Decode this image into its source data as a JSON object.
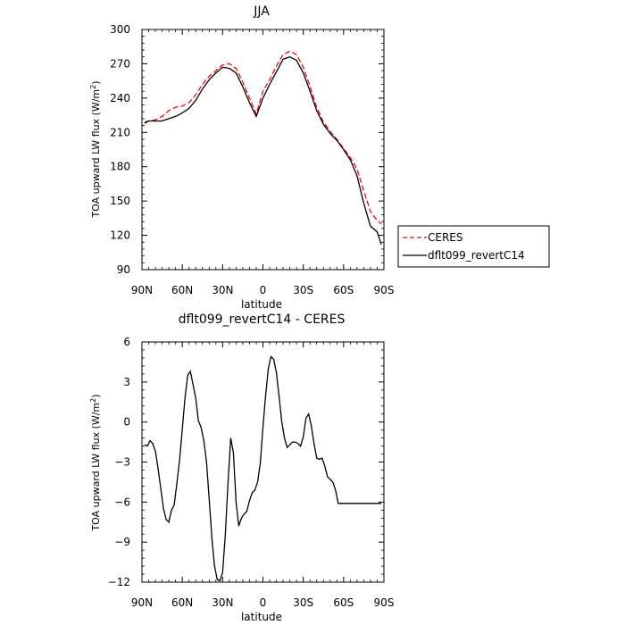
{
  "chart_data": [
    {
      "type": "line",
      "title": "JJA",
      "xlabel": "latitude",
      "ylabel_main": "TOA upward LW flux (W/m",
      "ylabel_sup": "2",
      "ylabel_close": ")",
      "xlim": [
        90,
        -90
      ],
      "ylim": [
        90,
        300
      ],
      "x_ticks": [
        90,
        60,
        30,
        0,
        -30,
        -60,
        -90
      ],
      "x_tick_labels": [
        "90N",
        "60N",
        "30N",
        "0",
        "30S",
        "60S",
        "90S"
      ],
      "y_ticks": [
        90,
        120,
        150,
        180,
        210,
        240,
        270,
        300
      ],
      "y_tick_labels": [
        "90",
        "120",
        "150",
        "180",
        "210",
        "240",
        "270",
        "300"
      ],
      "grid": false,
      "legend_position": "right",
      "x": [
        88,
        85,
        80,
        75,
        70,
        65,
        60,
        55,
        50,
        45,
        40,
        35,
        30,
        25,
        20,
        15,
        10,
        5,
        0,
        -5,
        -10,
        -15,
        -20,
        -25,
        -30,
        -35,
        -40,
        -45,
        -50,
        -55,
        -60,
        -65,
        -70,
        -75,
        -80,
        -85,
        -88
      ],
      "series": [
        {
          "name": "CERES",
          "color": "#ff0000",
          "dash": true,
          "values": [
            219,
            220,
            221,
            224,
            229,
            232,
            233,
            236,
            243,
            252,
            259,
            264,
            269,
            270,
            266,
            254,
            240,
            226,
            246,
            256,
            268,
            278,
            281,
            278,
            267,
            250,
            232,
            219,
            211,
            204,
            196,
            188,
            178,
            159,
            141,
            133,
            130
          ]
        },
        {
          "name": "dflt099_revertC14",
          "color": "#000000",
          "dash": false,
          "values": [
            218,
            220,
            220,
            220,
            222,
            224,
            227,
            231,
            238,
            248,
            256,
            262,
            267,
            266,
            262,
            250,
            236,
            224,
            240,
            252,
            263,
            274,
            276,
            273,
            262,
            246,
            229,
            217,
            209,
            203,
            195,
            186,
            172,
            148,
            128,
            123,
            112
          ]
        }
      ]
    },
    {
      "type": "line",
      "title": "dflt099_revertC14 - CERES",
      "xlabel": "latitude",
      "ylabel_main": "TOA upward LW flux (W/m",
      "ylabel_sup": "2",
      "ylabel_close": ")",
      "xlim": [
        90,
        -90
      ],
      "ylim": [
        -12,
        6
      ],
      "x_ticks": [
        90,
        60,
        30,
        0,
        -30,
        -60,
        -90
      ],
      "x_tick_labels": [
        "90N",
        "60N",
        "30N",
        "0",
        "30S",
        "60S",
        "90S"
      ],
      "y_ticks": [
        -12,
        -9,
        -6,
        -3,
        0,
        3,
        6
      ],
      "y_tick_labels": [
        "−12",
        "−9",
        "−6",
        "−3",
        "0",
        "3",
        "6"
      ],
      "grid": false,
      "x": [
        88,
        86,
        84,
        82,
        80,
        78,
        76,
        74,
        72,
        70,
        68,
        66,
        64,
        62,
        60,
        58,
        56,
        54,
        52,
        50,
        48,
        46,
        44,
        42,
        40,
        38,
        36,
        34,
        32,
        30,
        28,
        26,
        24,
        22,
        20,
        18,
        16,
        14,
        12,
        10,
        8,
        6,
        4,
        2,
        0,
        -2,
        -4,
        -6,
        -8,
        -10,
        -12,
        -14,
        -16,
        -18,
        -20,
        -22,
        -24,
        -26,
        -28,
        -30,
        -32,
        -34,
        -36,
        -38,
        -40,
        -42,
        -44,
        -46,
        -48,
        -50,
        -52,
        -54,
        -56,
        -58,
        -60,
        -62,
        -64,
        -66,
        -68,
        -70,
        -72,
        -74,
        -76,
        -78,
        -80,
        -82,
        -84,
        -86,
        -88
      ],
      "series": [
        {
          "name": "",
          "color": "#000000",
          "dash": false,
          "values": [
            -1.7,
            -1.8,
            -1.4,
            -1.6,
            -2.2,
            -3.5,
            -5.0,
            -6.5,
            -7.3,
            -7.5,
            -6.6,
            -6.2,
            -4.6,
            -2.8,
            -0.5,
            1.8,
            3.5,
            3.8,
            2.8,
            1.8,
            0.1,
            -0.4,
            -1.4,
            -3.0,
            -5.8,
            -8.7,
            -10.8,
            -11.8,
            -11.9,
            -11.3,
            -8.5,
            -4.5,
            -1.2,
            -2.3,
            -6.0,
            -7.8,
            -7.2,
            -6.9,
            -6.7,
            -5.9,
            -5.3,
            -5.1,
            -4.5,
            -3.1,
            -0.4,
            2.0,
            4.0,
            4.9,
            4.7,
            3.7,
            1.9,
            0.0,
            -1.2,
            -1.9,
            -1.7,
            -1.5,
            -1.5,
            -1.6,
            -1.8,
            -1.1,
            0.3,
            0.6,
            -0.3,
            -1.6,
            -2.7,
            -2.8,
            -2.7,
            -3.3,
            -4.1,
            -4.3,
            -4.5,
            -5.1,
            -6.1,
            -6.1,
            -6.1,
            -6.1,
            -6.1,
            -6.1,
            -6.1,
            -6.1,
            -6.1,
            -6.1,
            -6.1,
            -6.1,
            -6.1,
            -6.1,
            -6.1,
            -6.1,
            -6.1
          ]
        }
      ]
    }
  ]
}
